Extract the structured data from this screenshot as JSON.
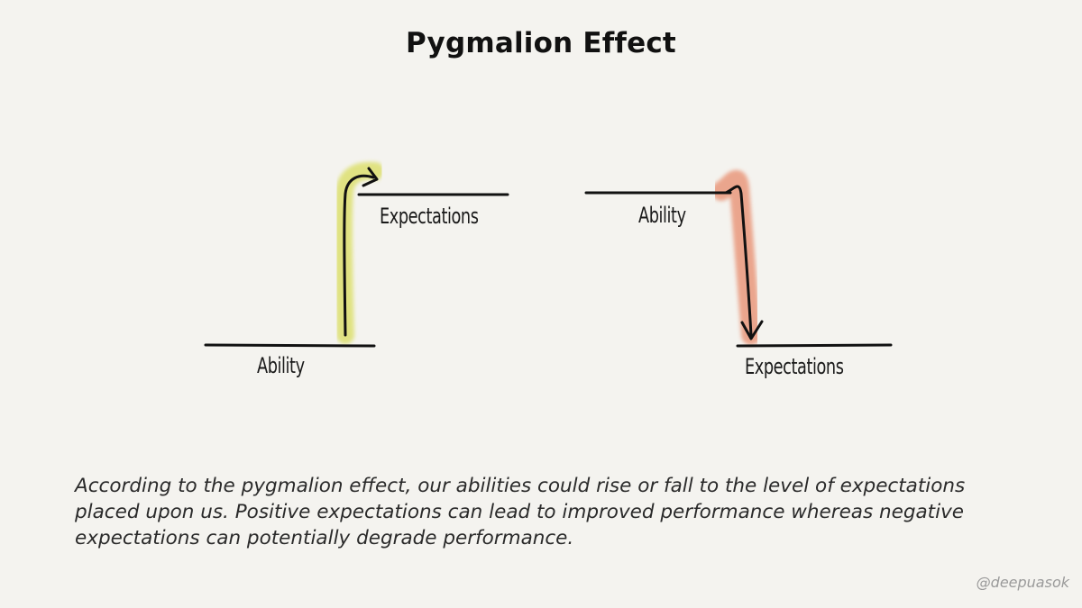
{
  "title": "Pygmalion Effect",
  "left_diagram": {
    "upper_label": "Expectations",
    "lower_label": "Ability",
    "arrow_direction": "up",
    "highlight_color": "#dde070"
  },
  "right_diagram": {
    "upper_label": "Ability",
    "lower_label": "Expectations",
    "arrow_direction": "down",
    "highlight_color": "#e9987c"
  },
  "caption": "According to the pygmalion effect, our abilities could rise or fall to the level of expectations placed upon us. Positive expectations can lead to improved performance whereas negative expectations can potentially degrade performance.",
  "handle": "@deepuasok"
}
